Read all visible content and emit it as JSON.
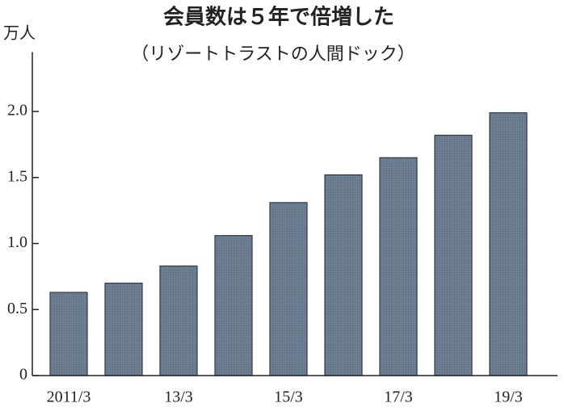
{
  "chart_data": {
    "type": "bar",
    "title": "会員数は５年で倍増した",
    "subtitle": "（リゾートトラストの人間ドック）",
    "y_label": "万人",
    "categories": [
      "2011/3",
      null,
      "13/3",
      null,
      "15/3",
      null,
      "17/3",
      null,
      "19/3"
    ],
    "values": [
      0.63,
      0.7,
      0.83,
      1.06,
      1.31,
      1.52,
      1.65,
      1.82,
      1.99
    ],
    "color": "#6d7f93",
    "ylim": [
      0,
      2.4
    ],
    "yticks": [
      0,
      0.5,
      {
        "value": 1,
        "label": "1.0"
      },
      1.5,
      {
        "value": 2,
        "label": "2.0"
      }
    ]
  }
}
